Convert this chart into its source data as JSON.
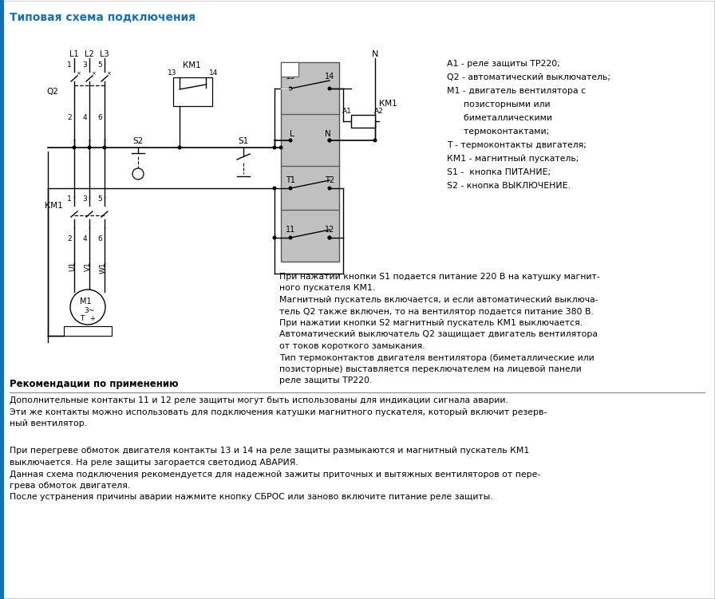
{
  "title": "Типовая схема подключения",
  "title_color": "#1a6faf",
  "bg_color": "#ffffff",
  "legend_items": [
    [
      "А1 - реле защиты ТР220;",
      false
    ],
    [
      "Q2 - автоматический выключатель;",
      false
    ],
    [
      "М1 - двигатель вентилятора с",
      false
    ],
    [
      "      позисторными или",
      false
    ],
    [
      "      биметаллическими",
      false
    ],
    [
      "      термоконтактами;",
      false
    ],
    [
      "Т - термоконтакты двигателя;",
      false
    ],
    [
      "КМ1 - магнитный пускатель;",
      false
    ],
    [
      "S1 -  кнопка ПИТАНИЕ;",
      false
    ],
    [
      "S2 - кнопка ВЫКЛЮЧЕНИЕ.",
      false
    ]
  ],
  "text1_lines": [
    "При нажатии кнопки S1 подается питание 220 В на катушку магнит-",
    "ного пускателя КМ1.",
    "Магнитный пускатель включается, и если автоматический выключа-",
    "тель Q2 также включен, то на вентилятор подается питание 380 В.",
    "При нажатии кнопки S2 магнитный пускатель КМ1 выключается.",
    "Автоматический выключатель Q2 защищает двигатель вентилятора",
    "от токов короткого замыкания.",
    "Тип термоконтактов двигателя вентилятора (биметаллические или",
    "позисторные) выставляется переключателем на лицевой панели",
    "реле защиты ТР220."
  ],
  "section2_title": "Рекомендации по применению",
  "text2_lines": [
    "Дополнительные контакты 11 и 12 реле защиты могут быть использованы для индикации сигнала аварии.",
    "Эти же контакты можно использовать для подключения катушки магнитного пускателя, который включит резерв-",
    "ный вентилятор."
  ],
  "text3_lines": [
    "При перегреве обмоток двигателя контакты 13 и 14 на реле защиты размыкаются и магнитный пускатель КМ1",
    "выключается. На реле защиты загорается светодиод АВАРИЯ.",
    "Данная схема подключения рекомендуется для надежной зажиты приточных и вытяжных вентиляторов от пере-",
    "грева обмоток двигателя.",
    "После устранения причины аварии нажмите кнопку СБРОС или заново включите питание реле защиты."
  ],
  "lc": "#000000",
  "relay_fill": "#c0c0c0",
  "left_bar_color": "#1a6faf"
}
